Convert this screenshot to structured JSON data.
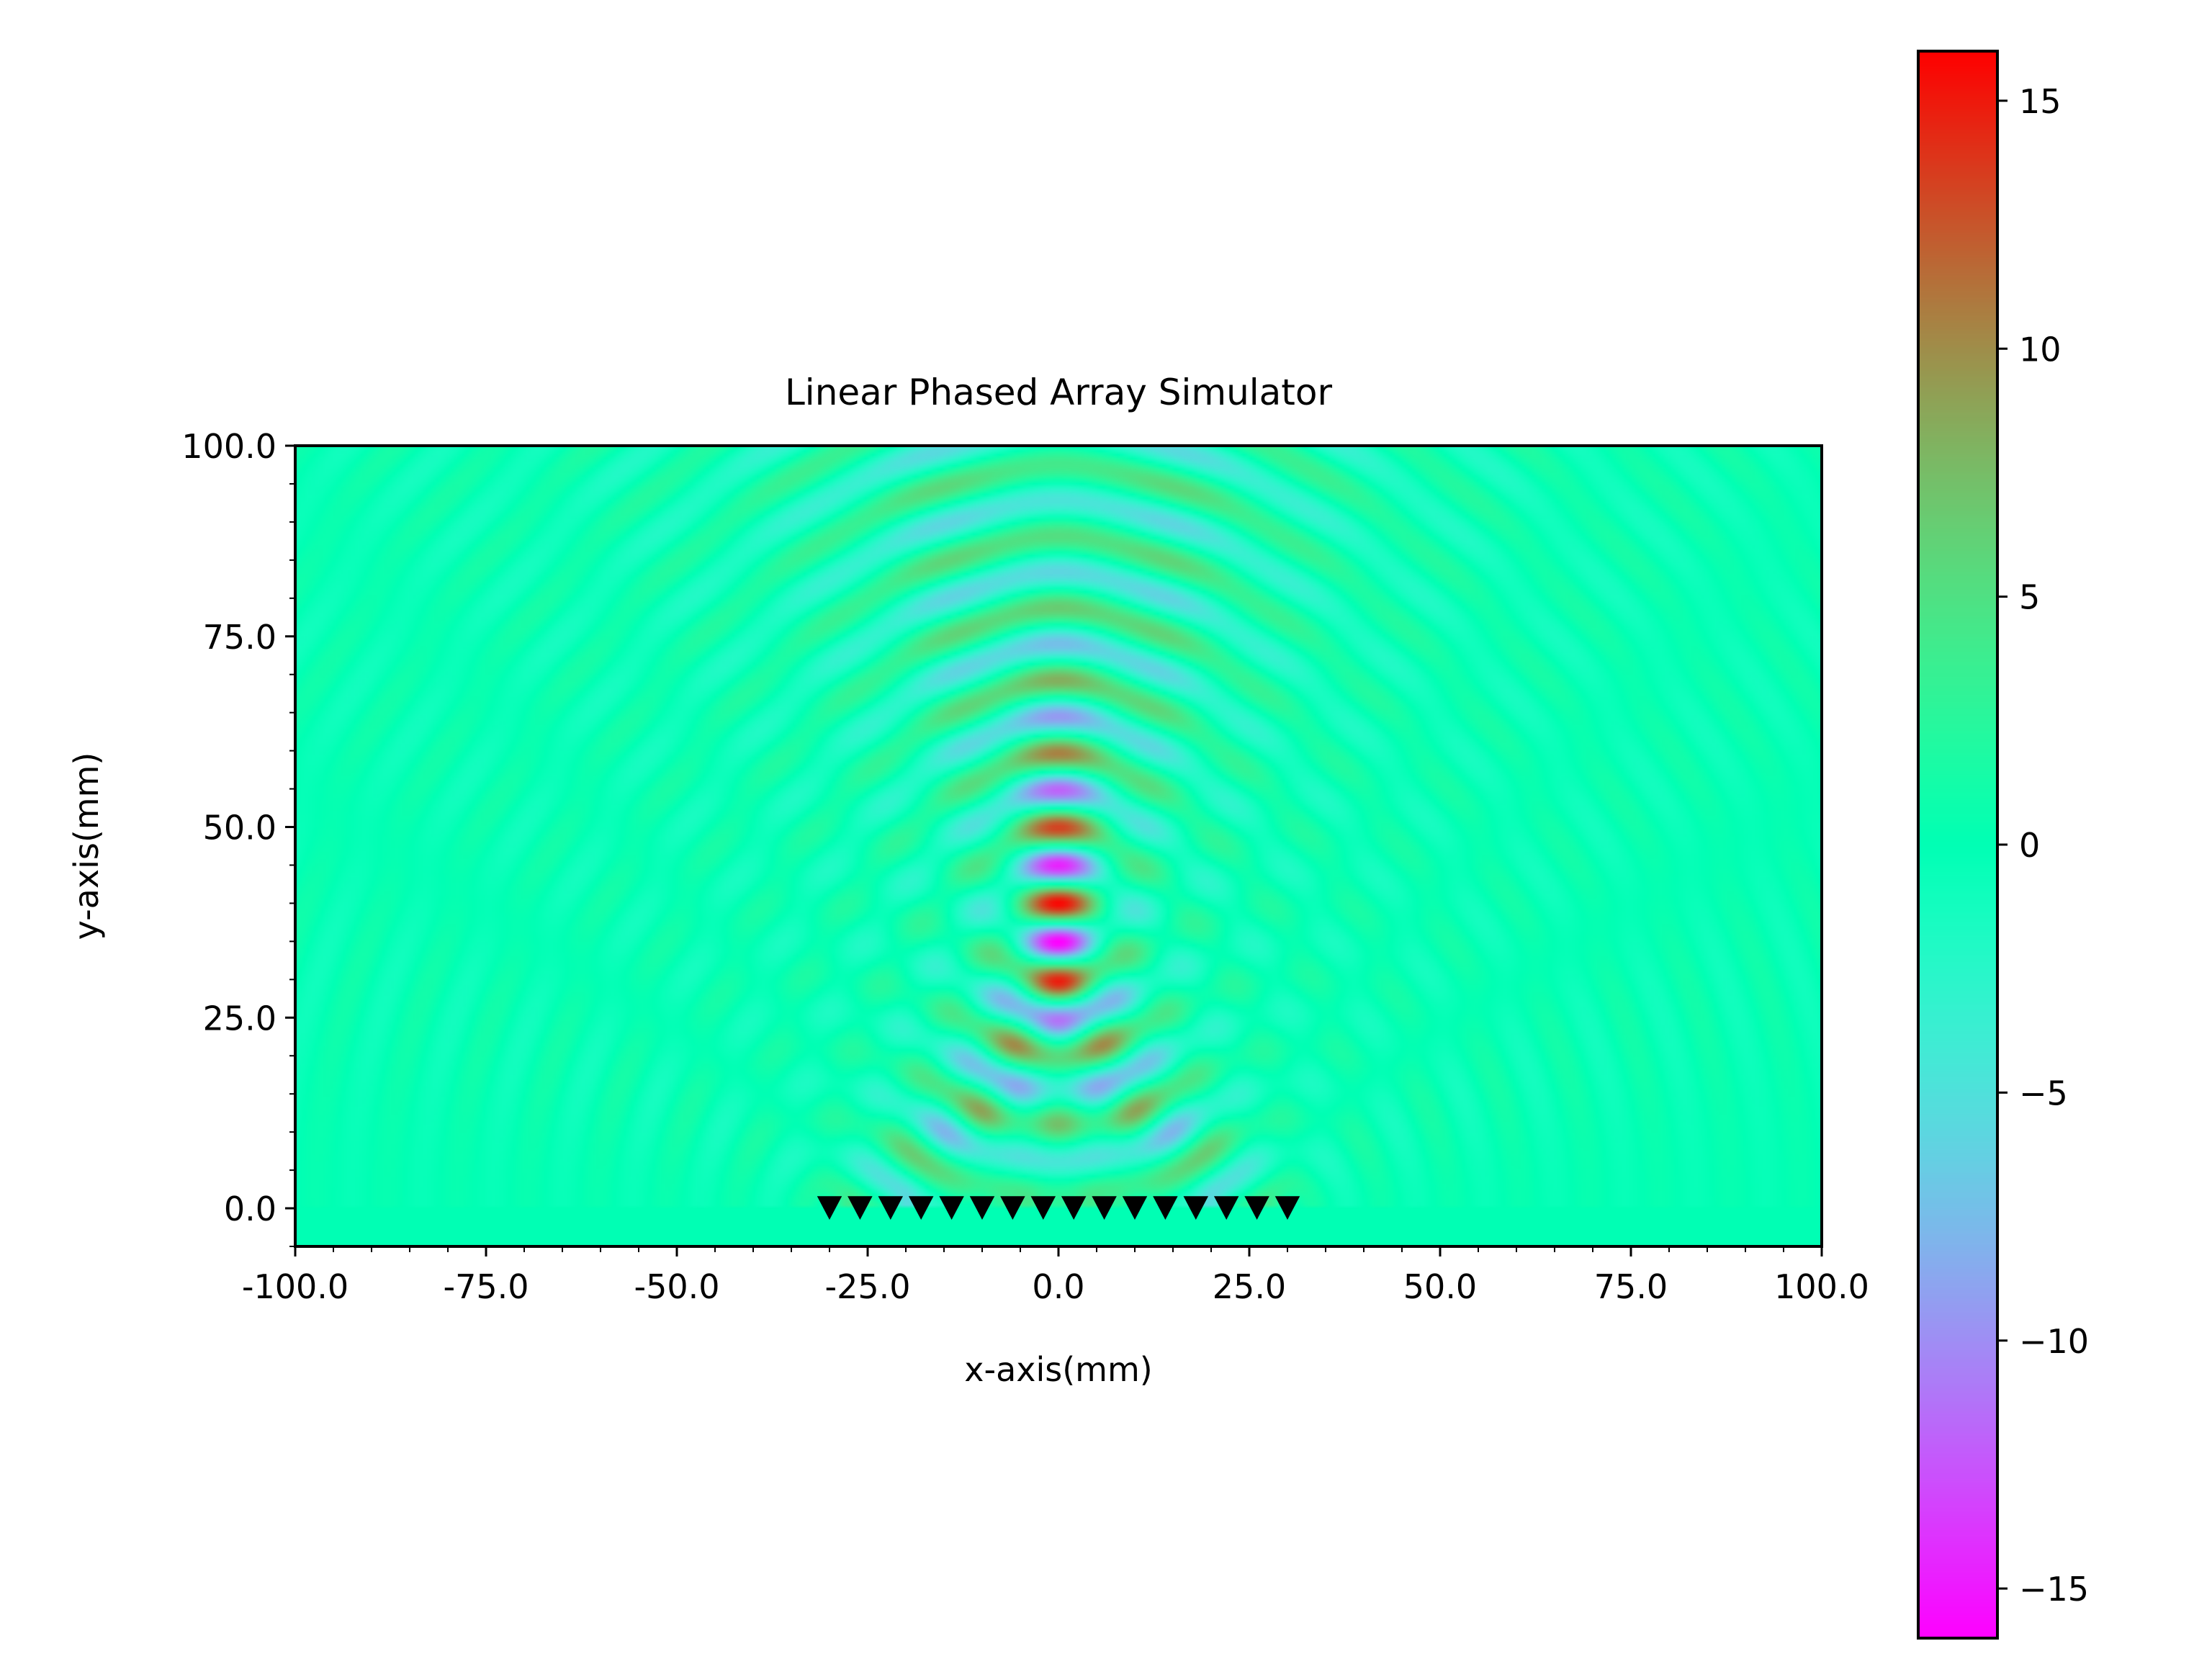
{
  "chart_data": {
    "type": "heatmap",
    "title": "Linear Phased Array Simulator",
    "xlabel": "x-axis(mm)",
    "ylabel": "y-axis(mm)",
    "xlim": [
      -100,
      100
    ],
    "ylim": [
      -5,
      100
    ],
    "x_ticks": [
      {
        "value": -100,
        "label": "-100.0"
      },
      {
        "value": -75,
        "label": "-75.0"
      },
      {
        "value": -50,
        "label": "-50.0"
      },
      {
        "value": -25,
        "label": "-25.0"
      },
      {
        "value": 0,
        "label": "0.0"
      },
      {
        "value": 25,
        "label": "25.0"
      },
      {
        "value": 50,
        "label": "50.0"
      },
      {
        "value": 75,
        "label": "75.0"
      },
      {
        "value": 100,
        "label": "100.0"
      }
    ],
    "y_ticks": [
      {
        "value": 0,
        "label": "0.0"
      },
      {
        "value": 25,
        "label": "25.0"
      },
      {
        "value": 50,
        "label": "50.0"
      },
      {
        "value": 75,
        "label": "75.0"
      },
      {
        "value": 100,
        "label": "100.0"
      }
    ],
    "colormap": "rainbow",
    "colorbar": {
      "range": [
        -16,
        16
      ],
      "ticks": [
        {
          "value": 15,
          "label": "15"
        },
        {
          "value": 10,
          "label": "10"
        },
        {
          "value": 5,
          "label": "5"
        },
        {
          "value": 0,
          "label": "0"
        },
        {
          "value": -5,
          "label": "−5"
        },
        {
          "value": -10,
          "label": "−10"
        },
        {
          "value": -15,
          "label": "−15"
        }
      ]
    },
    "field": {
      "description_of_pattern": "focused wave field",
      "focus_point": [
        0,
        40
      ],
      "peak_value": 16,
      "wavelength_mm": 9.3
    },
    "transducers": {
      "marker": "down-triangle",
      "color": "#000000",
      "y": 0,
      "x": [
        -30,
        -26,
        -22,
        -18,
        -14,
        -10,
        -6,
        -2,
        2,
        6,
        10,
        14,
        18,
        22,
        26,
        30
      ]
    }
  }
}
